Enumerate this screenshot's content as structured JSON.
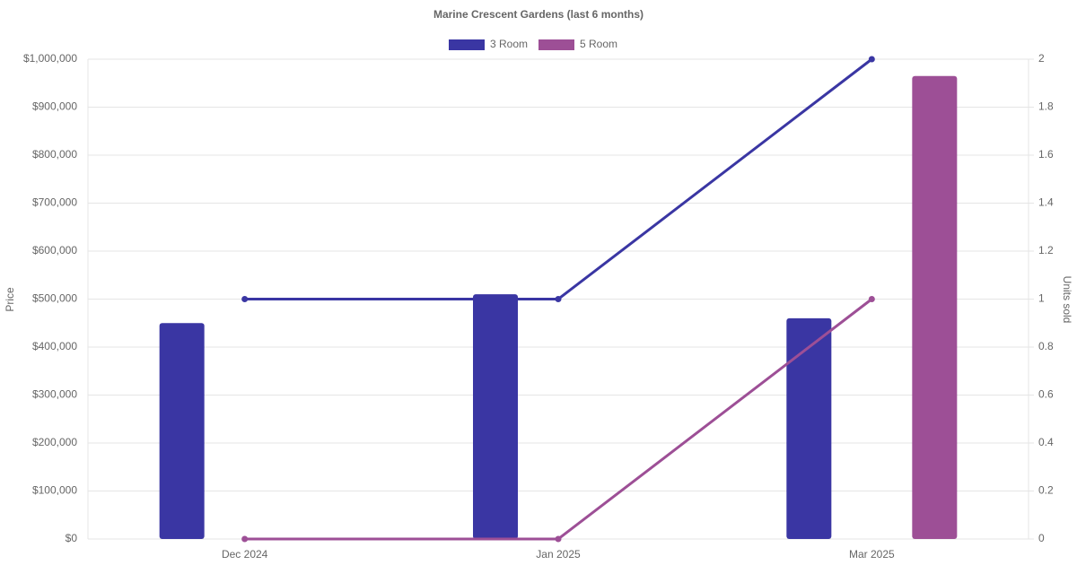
{
  "chart_data": {
    "type": "bar-line",
    "title": "Marine Crescent Gardens (last 6 months)",
    "y_label": "Price",
    "y2_label": "Units sold",
    "categories": [
      "Dec 2024",
      "Jan 2025",
      "Mar 2025"
    ],
    "series": [
      {
        "name": "3 Room",
        "color": "#3a36a3",
        "values": [
          450000,
          510000,
          460000
        ],
        "units": [
          1,
          1,
          2
        ]
      },
      {
        "name": "5 Room",
        "color": "#9d4f96",
        "values": [
          null,
          null,
          965000
        ],
        "units": [
          0,
          0,
          1
        ]
      }
    ],
    "ylim": [
      0,
      1000000
    ],
    "yticks": [
      {
        "value": 0,
        "label": "$0"
      },
      {
        "value": 100000,
        "label": "$100,000"
      },
      {
        "value": 200000,
        "label": "$200,000"
      },
      {
        "value": 300000,
        "label": "$300,000"
      },
      {
        "value": 400000,
        "label": "$400,000"
      },
      {
        "value": 500000,
        "label": "$500,000"
      },
      {
        "value": 600000,
        "label": "$600,000"
      },
      {
        "value": 700000,
        "label": "$700,000"
      },
      {
        "value": 800000,
        "label": "$800,000"
      },
      {
        "value": 900000,
        "label": "$900,000"
      },
      {
        "value": 1000000,
        "label": "$1,000,000"
      }
    ],
    "y2lim": [
      0,
      2
    ],
    "y2ticks": [
      0,
      0.2,
      0.4,
      0.6,
      0.8,
      1,
      1.2,
      1.4,
      1.6,
      1.8,
      2
    ],
    "grid": true
  }
}
